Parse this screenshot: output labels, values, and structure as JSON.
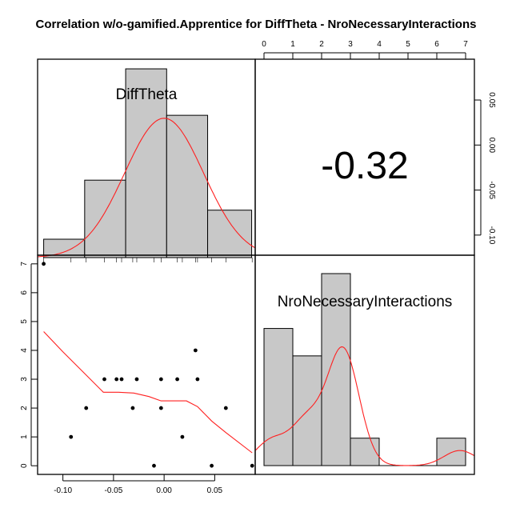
{
  "chart_data": {
    "type": "scatter",
    "title": "Correlation w/o-gamified.Apprentice for DiffTheta - NroNecessaryInteractions",
    "variables": [
      "DiffTheta",
      "NroNecessaryInteractions"
    ],
    "correlation": "-0.32",
    "scatter": {
      "x_var": "DiffTheta",
      "y_var": "NroNecessaryInteractions",
      "xlim": [
        -0.125,
        0.09
      ],
      "ylim": [
        -0.3,
        7.3
      ],
      "points": [
        {
          "x": -0.119,
          "y": 7
        },
        {
          "x": -0.092,
          "y": 1
        },
        {
          "x": -0.077,
          "y": 2
        },
        {
          "x": -0.059,
          "y": 3
        },
        {
          "x": -0.047,
          "y": 3
        },
        {
          "x": -0.042,
          "y": 3
        },
        {
          "x": -0.031,
          "y": 2
        },
        {
          "x": -0.027,
          "y": 3
        },
        {
          "x": -0.01,
          "y": 0
        },
        {
          "x": -0.003,
          "y": 3
        },
        {
          "x": -0.003,
          "y": 2
        },
        {
          "x": 0.013,
          "y": 3
        },
        {
          "x": 0.018,
          "y": 1
        },
        {
          "x": 0.031,
          "y": 4
        },
        {
          "x": 0.033,
          "y": 3
        },
        {
          "x": 0.047,
          "y": 0
        },
        {
          "x": 0.061,
          "y": 2
        },
        {
          "x": 0.087,
          "y": 0
        }
      ],
      "smooth": [
        {
          "x": -0.119,
          "y": 4.65
        },
        {
          "x": -0.1,
          "y": 3.95
        },
        {
          "x": -0.08,
          "y": 3.25
        },
        {
          "x": -0.06,
          "y": 2.55
        },
        {
          "x": -0.045,
          "y": 2.55
        },
        {
          "x": -0.03,
          "y": 2.52
        },
        {
          "x": -0.015,
          "y": 2.4
        },
        {
          "x": -0.003,
          "y": 2.25
        },
        {
          "x": 0.013,
          "y": 2.25
        },
        {
          "x": 0.022,
          "y": 2.25
        },
        {
          "x": 0.033,
          "y": 2.05
        },
        {
          "x": 0.047,
          "y": 1.55
        },
        {
          "x": 0.061,
          "y": 1.15
        },
        {
          "x": 0.087,
          "y": 0.45
        }
      ],
      "x_ticks": [
        -0.1,
        -0.05,
        0.0,
        0.05
      ],
      "x_tick_labels": [
        "-0.10",
        "-0.05",
        "0.00",
        "0.05"
      ],
      "y_ticks": [
        0,
        1,
        2,
        3,
        4,
        5,
        6,
        7
      ],
      "y_tick_labels": [
        "0",
        "1",
        "2",
        "3",
        "4",
        "5",
        "6",
        "7"
      ]
    },
    "hist_difftheta": {
      "xlim": [
        -0.125,
        0.09
      ],
      "breaks": [
        -0.12,
        -0.1,
        -0.08,
        -0.06,
        -0.04,
        -0.02,
        0.0,
        0.02,
        0.04,
        0.06,
        0.08
      ],
      "bins": [
        {
          "x0": -0.12,
          "x1": -0.1,
          "density": 2
        },
        {
          "x0": -0.1,
          "x1": -0.06,
          "density": 5.3
        },
        {
          "x0": -0.06,
          "x1": -0.02,
          "density": 13.1
        },
        {
          "x0": -0.02,
          "x1": 0.02,
          "density": 9.2
        },
        {
          "x0": 0.02,
          "x1": 0.06,
          "density": 4.9
        }
      ],
      "bin_edges": [
        -0.119,
        -0.0785,
        -0.038,
        0.0025,
        0.043,
        0.0865
      ],
      "bin_heights": [
        0.095,
        0.4,
        0.975,
        0.735,
        0.245
      ],
      "density_curve_peak_x": 0.0,
      "density_curve_sd": 0.039,
      "rug": [
        -0.119,
        -0.092,
        -0.077,
        -0.059,
        -0.047,
        -0.042,
        -0.031,
        -0.027,
        -0.01,
        -0.003,
        0.013,
        0.018,
        0.031,
        0.033,
        0.047,
        0.061,
        0.087
      ]
    },
    "hist_nro": {
      "xlim": [
        0,
        7
      ],
      "bins": [
        {
          "x0": 0,
          "x1": 1,
          "height": 5
        },
        {
          "x0": 1,
          "x1": 2,
          "height": 4
        },
        {
          "x0": 2,
          "x1": 3,
          "height": 7
        },
        {
          "x0": 3,
          "x1": 4,
          "height": 1
        },
        {
          "x0": 4,
          "x1": 5,
          "height": 0
        },
        {
          "x0": 5,
          "x1": 6,
          "height": 0
        },
        {
          "x0": 6,
          "x1": 7,
          "height": 1
        }
      ],
      "ymax": 7.35,
      "x_ticks": [
        0,
        1,
        2,
        3,
        4,
        5,
        6,
        7
      ],
      "x_tick_labels": [
        "0",
        "1",
        "2",
        "3",
        "4",
        "5",
        "6",
        "7"
      ],
      "y_ticks": [
        -0.1,
        -0.05,
        0.0,
        0.05
      ],
      "y_tick_labels": [
        "-0.10",
        "-0.05",
        "0.00",
        "0.05"
      ],
      "y_axis_range": [
        -0.125,
        0.09
      ]
    },
    "grid": false,
    "legend": "none"
  }
}
